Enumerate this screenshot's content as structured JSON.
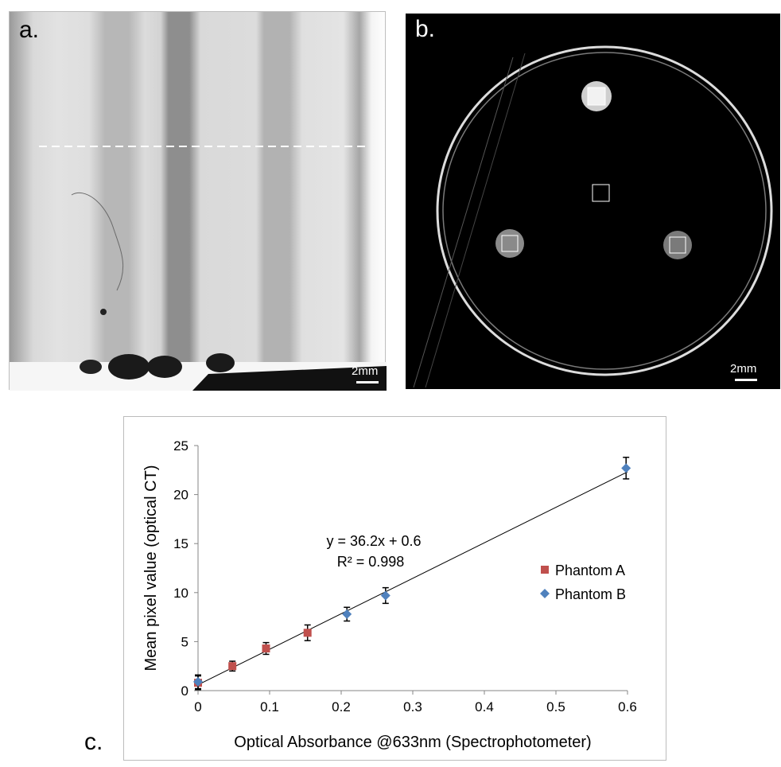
{
  "panels": {
    "a": {
      "label": "a.",
      "scalebar": "2mm"
    },
    "b": {
      "label": "b.",
      "scalebar": "2mm"
    },
    "c": {
      "label": "c."
    }
  },
  "chart_data": {
    "type": "scatter",
    "title": "",
    "xlabel": "Optical Absorbance @633nm (Spectrophotometer)",
    "ylabel": "Mean pixel value (optical CT)",
    "xlim": [
      0,
      0.6
    ],
    "ylim": [
      0,
      25
    ],
    "x_ticks": [
      "0",
      "0.1",
      "0.2",
      "0.3",
      "0.4",
      "0.5",
      "0.6"
    ],
    "y_ticks": [
      "0",
      "5",
      "10",
      "15",
      "20",
      "25"
    ],
    "grid": false,
    "legend_position": "right",
    "series": [
      {
        "name": "Phantom A",
        "color": "#c0504d",
        "marker": "square",
        "points": [
          {
            "x": 0.0,
            "y": 0.8,
            "err": 0.7
          },
          {
            "x": 0.048,
            "y": 2.5,
            "err": 0.5
          },
          {
            "x": 0.095,
            "y": 4.3,
            "err": 0.6
          },
          {
            "x": 0.153,
            "y": 5.9,
            "err": 0.8
          }
        ]
      },
      {
        "name": "Phantom B",
        "color": "#4f81bd",
        "marker": "diamond",
        "points": [
          {
            "x": 0.0,
            "y": 0.9,
            "err": 0.7
          },
          {
            "x": 0.208,
            "y": 7.8,
            "err": 0.7
          },
          {
            "x": 0.262,
            "y": 9.7,
            "err": 0.8
          },
          {
            "x": 0.598,
            "y": 22.7,
            "err": 1.1
          }
        ]
      }
    ],
    "trendline": {
      "slope": 36.2,
      "intercept": 0.6,
      "color": "#000000"
    },
    "annotations": [
      "y = 36.2x + 0.6",
      "R² = 0.998"
    ]
  }
}
